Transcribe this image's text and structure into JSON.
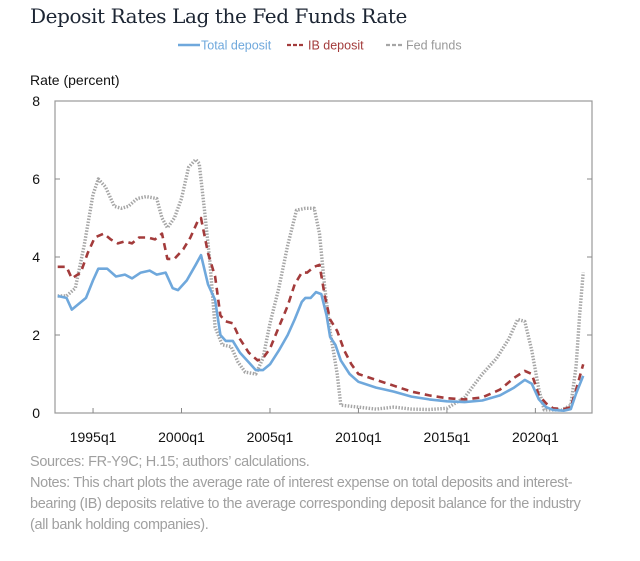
{
  "chart_data": {
    "type": "line",
    "title": "Deposit Rates Lag the Fed Funds Rate",
    "ylabel": "Rate (percent)",
    "xlabel": "",
    "ylim": [
      0,
      8
    ],
    "yticks": [
      0,
      2,
      4,
      6,
      8
    ],
    "xlim": [
      1992.85,
      2023.2
    ],
    "xticks": [
      {
        "value": 1995,
        "label": "1995q1"
      },
      {
        "value": 2000,
        "label": "2000q1"
      },
      {
        "value": 2005,
        "label": "2005q1"
      },
      {
        "value": 2010,
        "label": "2010q1"
      },
      {
        "value": 2015,
        "label": "2015q1"
      },
      {
        "value": 2020,
        "label": "2020q1"
      }
    ],
    "grid": false,
    "legend": "top-center",
    "series": [
      {
        "name": "Total deposit",
        "color": "#6fa8dc",
        "style": "solid",
        "points": [
          [
            1993.0,
            3.0
          ],
          [
            1993.5,
            2.95
          ],
          [
            1993.8,
            2.65
          ],
          [
            1994.2,
            2.8
          ],
          [
            1994.6,
            2.95
          ],
          [
            1995.0,
            3.4
          ],
          [
            1995.3,
            3.7
          ],
          [
            1995.8,
            3.7
          ],
          [
            1996.3,
            3.5
          ],
          [
            1996.8,
            3.55
          ],
          [
            1997.2,
            3.45
          ],
          [
            1997.7,
            3.6
          ],
          [
            1998.2,
            3.65
          ],
          [
            1998.6,
            3.55
          ],
          [
            1999.1,
            3.6
          ],
          [
            1999.5,
            3.2
          ],
          [
            1999.8,
            3.15
          ],
          [
            2000.3,
            3.4
          ],
          [
            2000.8,
            3.8
          ],
          [
            2001.1,
            4.05
          ],
          [
            2001.5,
            3.3
          ],
          [
            2001.9,
            2.9
          ],
          [
            2002.2,
            2.0
          ],
          [
            2002.5,
            1.85
          ],
          [
            2002.9,
            1.85
          ],
          [
            2003.3,
            1.55
          ],
          [
            2003.8,
            1.3
          ],
          [
            2004.2,
            1.1
          ],
          [
            2004.6,
            1.1
          ],
          [
            2005.0,
            1.25
          ],
          [
            2005.5,
            1.6
          ],
          [
            2006.0,
            2.0
          ],
          [
            2006.4,
            2.4
          ],
          [
            2006.8,
            2.85
          ],
          [
            2007.0,
            2.95
          ],
          [
            2007.3,
            2.95
          ],
          [
            2007.6,
            3.1
          ],
          [
            2007.9,
            3.05
          ],
          [
            2008.2,
            2.5
          ],
          [
            2008.4,
            1.95
          ],
          [
            2008.7,
            1.75
          ],
          [
            2009.0,
            1.35
          ],
          [
            2009.5,
            1.0
          ],
          [
            2010.0,
            0.8
          ],
          [
            2011.0,
            0.65
          ],
          [
            2012.0,
            0.55
          ],
          [
            2013.0,
            0.42
          ],
          [
            2014.0,
            0.35
          ],
          [
            2015.0,
            0.3
          ],
          [
            2016.0,
            0.28
          ],
          [
            2017.0,
            0.32
          ],
          [
            2018.0,
            0.45
          ],
          [
            2018.8,
            0.65
          ],
          [
            2019.4,
            0.85
          ],
          [
            2019.8,
            0.75
          ],
          [
            2020.2,
            0.35
          ],
          [
            2020.6,
            0.15
          ],
          [
            2021.0,
            0.08
          ],
          [
            2021.6,
            0.06
          ],
          [
            2022.0,
            0.1
          ],
          [
            2022.3,
            0.5
          ],
          [
            2022.7,
            0.95
          ]
        ]
      },
      {
        "name": "IB deposit",
        "color": "#a33b3b",
        "style": "dashed",
        "points": [
          [
            1993.0,
            3.75
          ],
          [
            1993.5,
            3.75
          ],
          [
            1993.8,
            3.45
          ],
          [
            1994.3,
            3.6
          ],
          [
            1994.7,
            4.1
          ],
          [
            1995.1,
            4.5
          ],
          [
            1995.6,
            4.6
          ],
          [
            1996.0,
            4.45
          ],
          [
            1996.4,
            4.35
          ],
          [
            1996.8,
            4.4
          ],
          [
            1997.2,
            4.35
          ],
          [
            1997.6,
            4.5
          ],
          [
            1998.1,
            4.5
          ],
          [
            1998.5,
            4.45
          ],
          [
            1998.9,
            4.6
          ],
          [
            1999.2,
            3.95
          ],
          [
            1999.6,
            3.95
          ],
          [
            2000.1,
            4.2
          ],
          [
            2000.5,
            4.5
          ],
          [
            2000.9,
            4.9
          ],
          [
            2001.1,
            5.0
          ],
          [
            2001.5,
            4.1
          ],
          [
            2001.9,
            3.5
          ],
          [
            2002.2,
            2.5
          ],
          [
            2002.5,
            2.35
          ],
          [
            2002.9,
            2.3
          ],
          [
            2003.3,
            1.9
          ],
          [
            2003.8,
            1.55
          ],
          [
            2004.3,
            1.35
          ],
          [
            2004.6,
            1.4
          ],
          [
            2005.0,
            1.65
          ],
          [
            2005.5,
            2.2
          ],
          [
            2006.0,
            2.75
          ],
          [
            2006.4,
            3.3
          ],
          [
            2006.8,
            3.6
          ],
          [
            2007.1,
            3.6
          ],
          [
            2007.5,
            3.75
          ],
          [
            2007.8,
            3.8
          ],
          [
            2008.1,
            3.0
          ],
          [
            2008.4,
            2.4
          ],
          [
            2008.8,
            2.1
          ],
          [
            2009.2,
            1.6
          ],
          [
            2009.6,
            1.25
          ],
          [
            2010.0,
            1.0
          ],
          [
            2011.0,
            0.85
          ],
          [
            2012.0,
            0.7
          ],
          [
            2013.0,
            0.55
          ],
          [
            2014.0,
            0.45
          ],
          [
            2015.0,
            0.38
          ],
          [
            2016.0,
            0.35
          ],
          [
            2017.0,
            0.4
          ],
          [
            2018.0,
            0.6
          ],
          [
            2018.8,
            0.9
          ],
          [
            2019.4,
            1.08
          ],
          [
            2019.8,
            1.0
          ],
          [
            2020.2,
            0.45
          ],
          [
            2020.6,
            0.25
          ],
          [
            2021.0,
            0.12
          ],
          [
            2021.6,
            0.1
          ],
          [
            2022.0,
            0.15
          ],
          [
            2022.3,
            0.6
          ],
          [
            2022.7,
            1.25
          ]
        ]
      },
      {
        "name": "Fed funds",
        "color": "#a6a6a6",
        "style": "dotted",
        "points": [
          [
            1993.0,
            3.0
          ],
          [
            1993.5,
            3.0
          ],
          [
            1994.0,
            3.2
          ],
          [
            1994.5,
            4.3
          ],
          [
            1995.0,
            5.6
          ],
          [
            1995.3,
            6.0
          ],
          [
            1995.7,
            5.8
          ],
          [
            1996.2,
            5.3
          ],
          [
            1996.6,
            5.25
          ],
          [
            1997.0,
            5.3
          ],
          [
            1997.5,
            5.5
          ],
          [
            1998.0,
            5.55
          ],
          [
            1998.6,
            5.5
          ],
          [
            1998.9,
            5.0
          ],
          [
            1999.2,
            4.75
          ],
          [
            1999.6,
            5.0
          ],
          [
            2000.0,
            5.5
          ],
          [
            2000.4,
            6.3
          ],
          [
            2000.8,
            6.5
          ],
          [
            2001.0,
            6.4
          ],
          [
            2001.3,
            5.2
          ],
          [
            2001.6,
            3.9
          ],
          [
            2001.9,
            2.2
          ],
          [
            2002.3,
            1.75
          ],
          [
            2002.8,
            1.7
          ],
          [
            2003.2,
            1.3
          ],
          [
            2003.6,
            1.05
          ],
          [
            2004.2,
            1.0
          ],
          [
            2004.6,
            1.4
          ],
          [
            2005.0,
            2.3
          ],
          [
            2005.5,
            3.2
          ],
          [
            2006.0,
            4.3
          ],
          [
            2006.5,
            5.2
          ],
          [
            2007.0,
            5.25
          ],
          [
            2007.5,
            5.25
          ],
          [
            2007.8,
            4.6
          ],
          [
            2008.1,
            3.2
          ],
          [
            2008.4,
            2.1
          ],
          [
            2008.8,
            1.0
          ],
          [
            2009.0,
            0.2
          ],
          [
            2010.0,
            0.15
          ],
          [
            2011.0,
            0.1
          ],
          [
            2012.0,
            0.15
          ],
          [
            2013.0,
            0.1
          ],
          [
            2014.0,
            0.09
          ],
          [
            2015.0,
            0.12
          ],
          [
            2016.0,
            0.4
          ],
          [
            2017.0,
            1.0
          ],
          [
            2017.8,
            1.4
          ],
          [
            2018.5,
            1.9
          ],
          [
            2019.0,
            2.4
          ],
          [
            2019.4,
            2.35
          ],
          [
            2019.8,
            1.6
          ],
          [
            2020.2,
            0.6
          ],
          [
            2020.5,
            0.08
          ],
          [
            2021.5,
            0.08
          ],
          [
            2022.0,
            0.2
          ],
          [
            2022.3,
            1.2
          ],
          [
            2022.5,
            2.5
          ],
          [
            2022.7,
            3.6
          ]
        ]
      }
    ]
  },
  "footer": {
    "sources": "Sources: FR-Y9C; H.15; authors’ calculations.",
    "notes": "Notes: This chart plots the average rate of interest expense on total deposits and interest-bearing (IB) deposits relative to the average corresponding deposit balance for the industry (all bank holding companies)."
  }
}
